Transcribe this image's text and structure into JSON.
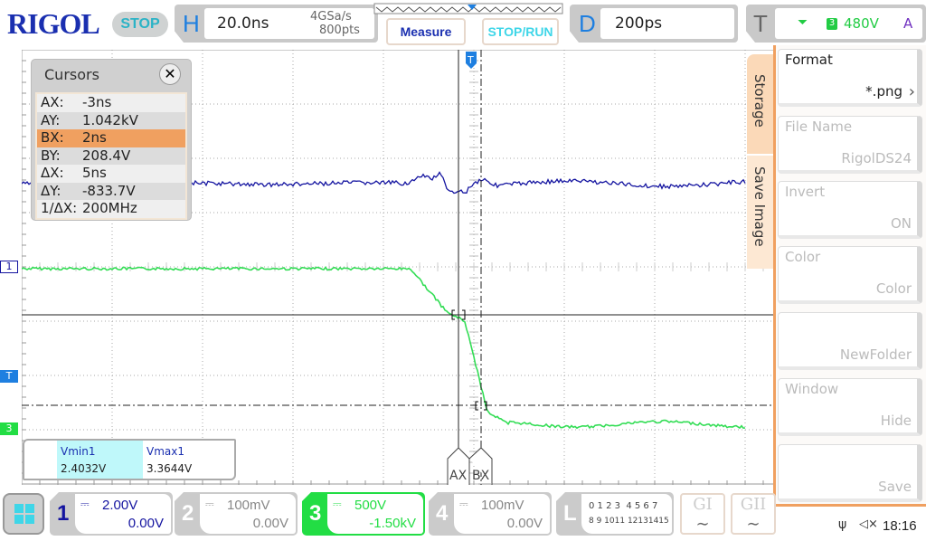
{
  "header": {
    "logo": "RIGOL",
    "run_state": "STOP",
    "horizontal": {
      "label": "H",
      "timebase": "20.0ns",
      "sample_rate": "4GSa/s",
      "memory_depth": "800pts"
    },
    "measure_label": "Measure",
    "stop_run_label": "STOP/RUN",
    "delay": {
      "label": "D",
      "value": "200ps"
    },
    "trigger": {
      "label": "T",
      "source": "3",
      "level": "480V",
      "mode": "A",
      "slope_icon": "falling-edge-icon"
    }
  },
  "cursors": {
    "title": "Cursors",
    "rows": [
      {
        "k": "AX:",
        "v": "-3ns"
      },
      {
        "k": "AY:",
        "v": "1.042kV"
      },
      {
        "k": "BX:",
        "v": "2ns"
      },
      {
        "k": "BY:",
        "v": "208.4V"
      },
      {
        "k": "ΔX:",
        "v": "5ns"
      },
      {
        "k": "ΔY:",
        "v": "-833.7V"
      },
      {
        "k": "1/ΔX:",
        "v": "200MHz"
      }
    ],
    "selected_row": 2,
    "ax_label": "AX",
    "bx_label": "BX"
  },
  "measurements": [
    {
      "name": "Vmin1",
      "value": "2.4032V"
    },
    {
      "name": "Vmax1",
      "value": "3.3644V"
    }
  ],
  "markers": {
    "ch1": "1",
    "trigger": "T",
    "ch3": "3"
  },
  "menu": {
    "tab1": "Storage",
    "tab2": "Save Image",
    "items": [
      {
        "label": "Format",
        "value": "*.png"
      },
      {
        "label": "File Name",
        "value": "RigolDS24"
      },
      {
        "label": "Invert",
        "value": "ON"
      },
      {
        "label": "Color",
        "value": "Color"
      },
      {
        "label": "",
        "value": "NewFolder"
      },
      {
        "label": "Window",
        "value": "Hide"
      },
      {
        "label": "",
        "value": "Save"
      }
    ]
  },
  "channels": [
    {
      "n": "1",
      "scale": "2.00V",
      "offset": "0.00V",
      "active": true,
      "color": "#1414a0"
    },
    {
      "n": "2",
      "scale": "100mV",
      "offset": "0.00V",
      "active": false,
      "color": "#888888"
    },
    {
      "n": "3",
      "scale": "500V",
      "offset": "-1.50kV",
      "active": true,
      "color": "#22dd44"
    },
    {
      "n": "4",
      "scale": "100mV",
      "offset": "0.00V",
      "active": false,
      "color": "#888888"
    }
  ],
  "logic": {
    "label": "L",
    "row1": "0 1 2 3  4 5 6 7",
    "row2": "8 9 1011 12131415"
  },
  "generators": [
    "GI",
    "GII"
  ],
  "status": {
    "time": "18:16",
    "usb_icon": "usb-icon",
    "sound_icon": "mute-icon"
  },
  "colors": {
    "ch1": "#1414a0",
    "ch3": "#22dd44",
    "accent": "#f0a060",
    "trigger": "#1e7fe0"
  }
}
